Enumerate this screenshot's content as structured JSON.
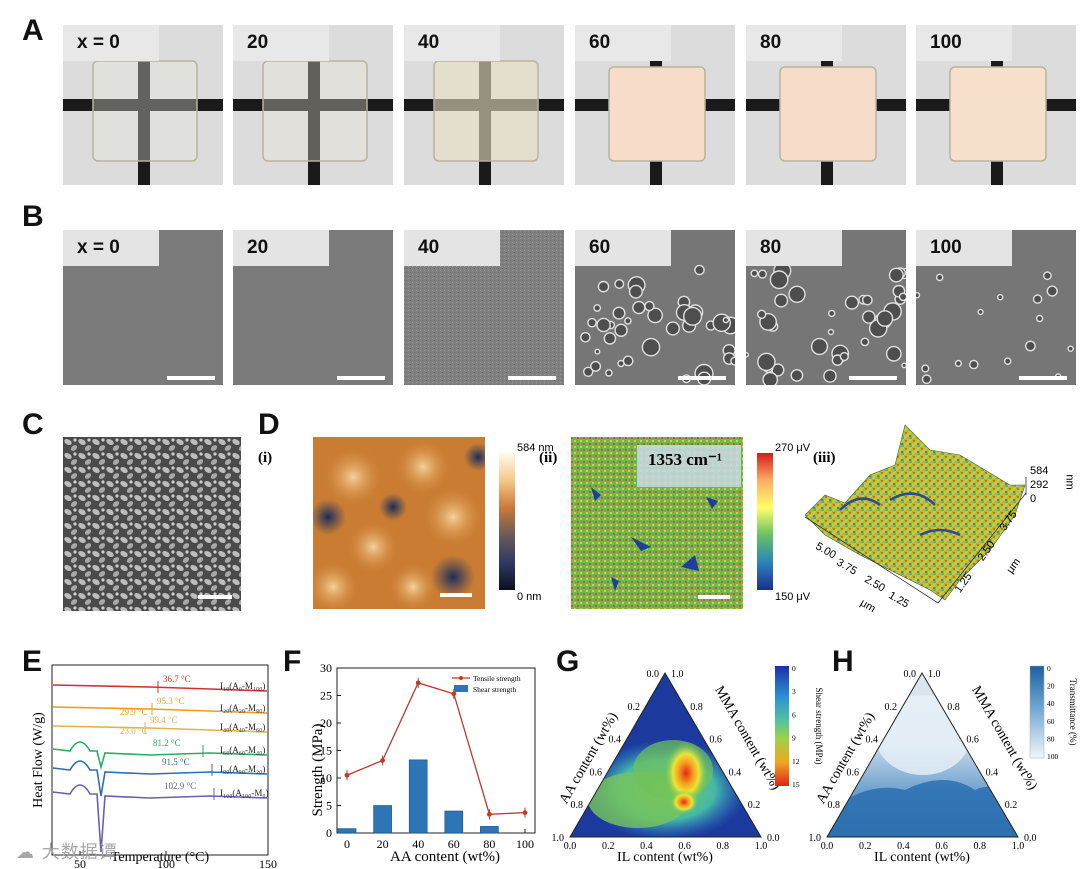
{
  "panels": {
    "A": "A",
    "B": "B",
    "C": "C",
    "D": "D",
    "E": "E",
    "F": "F",
    "G": "G",
    "H": "H"
  },
  "rowA": {
    "samples": [
      {
        "label": "x = 0",
        "state": "clear",
        "color": "#eceae3"
      },
      {
        "label": "20",
        "state": "clear",
        "color": "#ebe7da"
      },
      {
        "label": "40",
        "state": "translucent",
        "color": "#e9dfc3"
      },
      {
        "label": "60",
        "state": "opaque",
        "color": "#f7ddc9"
      },
      {
        "label": "80",
        "state": "opaque",
        "color": "#f7ddc9"
      },
      {
        "label": "100",
        "state": "opaque",
        "color": "#f8e1cc"
      }
    ]
  },
  "rowB": {
    "samples": [
      {
        "label": "x = 0",
        "texture": "smooth"
      },
      {
        "label": "20",
        "texture": "smooth"
      },
      {
        "label": "40",
        "texture": "grainy"
      },
      {
        "label": "60",
        "texture": "particles"
      },
      {
        "label": "80",
        "texture": "particles"
      },
      {
        "label": "100",
        "texture": "sparse"
      }
    ]
  },
  "panelD": {
    "i_label": "(i)",
    "i_max": "584 nm",
    "i_min": "0 nm",
    "ii_label": "(ii)",
    "ii_wavenumber": "1353 cm⁻¹",
    "ii_max": "270 μV",
    "ii_min": "150 μV",
    "iii_label": "(iii)",
    "iii_z1": "584",
    "iii_z2": "292",
    "iii_z0": "0",
    "iii_zunit": "nm",
    "iii_x_ticks": [
      "5.00",
      "3.75",
      "2.50",
      "1.25"
    ],
    "iii_x_unit": "μm",
    "iii_y_ticks": [
      "1.25",
      "2.50",
      "3.75"
    ],
    "iii_y_unit": "μm"
  },
  "panelE": {
    "ylabel": "Heat Flow (W/g)",
    "xlabel": "Temperature (°C)",
    "xticks": [
      "50",
      "100",
      "150"
    ],
    "curves": [
      {
        "label": "I₁₀(A₀-M₁₀₀)",
        "tg": "36.7 °C",
        "color": "#d32f2f"
      },
      {
        "label": "I₂₀(A₂₀-M₈₀)",
        "tg": "95.3 °C",
        "tg2": "29.9 °C",
        "color": "#f39c12"
      },
      {
        "label": "I₄₀(A₄₀-M₆₀)",
        "tg": "99.4 °C",
        "tg2": "23.0 °C",
        "color": "#e0b44a"
      },
      {
        "label": "I₆₀(A₆₀-M₄₀)",
        "tg": "81.2 °C",
        "color": "#27ae60"
      },
      {
        "label": "I₈₀(A₈₀-M₂₀)",
        "tg": "91.5 °C",
        "color": "#2f6fb3"
      },
      {
        "label": "I₁₀₀(A₁₀₀-M₀)",
        "tg": "102.9 °C",
        "color": "#6a5fb0"
      }
    ],
    "watermark": "大数据谭"
  },
  "chart_data": {
    "type": "bar",
    "title": "",
    "xlabel": "AA content (wt%)",
    "ylabel": "Strength (MPa)",
    "categories": [
      "0",
      "20",
      "40",
      "60",
      "80",
      "100"
    ],
    "ylim": [
      0,
      30
    ],
    "yticks": [
      "0",
      "5",
      "10",
      "15",
      "20",
      "25",
      "30"
    ],
    "series": [
      {
        "name": "Tensile strength",
        "type": "line",
        "color": "#c0392b",
        "values": [
          10.5,
          13.2,
          27.3,
          25.3,
          3.4,
          3.7
        ]
      },
      {
        "name": "Shear strength",
        "type": "bar",
        "color": "#2e75b6",
        "values": [
          0.8,
          5.0,
          13.3,
          4.0,
          1.2,
          null
        ]
      }
    ],
    "legend": "top-right"
  },
  "panelG": {
    "left_axis": "AA content (wt%)",
    "right_axis": "MMA content (wt%)",
    "bottom_axis": "IL content (wt%)",
    "ticks": [
      "0.0",
      "0.2",
      "0.4",
      "0.6",
      "0.8",
      "1.0"
    ],
    "colorbar_title": "Shear strength (MPa)",
    "colorbar_ticks": [
      "0",
      "3",
      "6",
      "9",
      "12",
      "15"
    ]
  },
  "panelH": {
    "left_axis": "AA content (wt%)",
    "right_axis": "MMA content (wt%)",
    "bottom_axis": "IL content (wt%)",
    "ticks": [
      "0.0",
      "0.2",
      "0.4",
      "0.6",
      "0.8",
      "1.0"
    ],
    "colorbar_title": "Transmittance (%)",
    "colorbar_ticks": [
      "0",
      "20",
      "40",
      "60",
      "80",
      "100"
    ]
  }
}
